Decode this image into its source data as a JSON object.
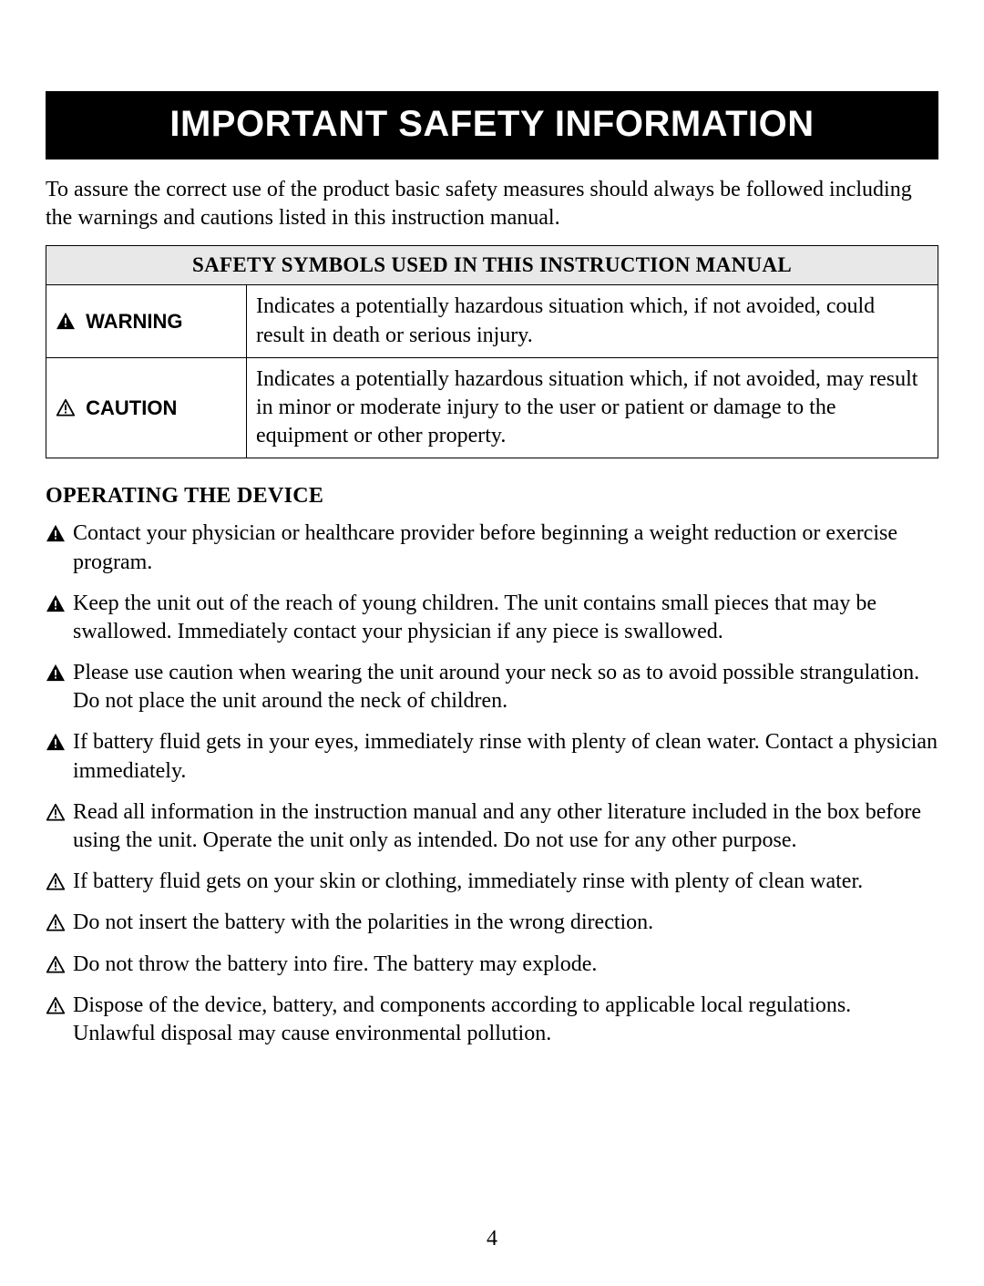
{
  "header": "IMPORTANT SAFETY INFORMATION",
  "intro": "To assure the correct use of the product basic safety measures should always be followed including the warnings and cautions listed in this instruction manual.",
  "table": {
    "title": "SAFETY SYMBOLS USED IN THIS INSTRUCTION MANUAL",
    "rows": [
      {
        "label": "WARNING",
        "filled": true,
        "desc": "Indicates a potentially hazardous situation which, if not avoided, could result in death or serious injury."
      },
      {
        "label": "CAUTION",
        "filled": false,
        "desc": "Indicates a potentially hazardous situation which, if not avoided, may result in minor or moderate injury to the user or patient or damage to the equipment or other property."
      }
    ]
  },
  "section_heading": "OPERATING THE DEVICE",
  "items": [
    {
      "filled": true,
      "text": "Contact your physician or healthcare provider before beginning a weight reduction or exercise program."
    },
    {
      "filled": true,
      "text": "Keep the unit out of the reach of young children. The unit contains small pieces that may be swallowed. Immediately contact your physician if any piece is swallowed."
    },
    {
      "filled": true,
      "text": "Please use caution when wearing the unit around your neck so as to avoid possible strangulation. Do not place the unit around the neck of children."
    },
    {
      "filled": true,
      "text": "If battery fluid gets in your eyes, immediately rinse with plenty of clean water. Contact a physician immediately."
    },
    {
      "filled": false,
      "text": "Read all information in the instruction manual and any other literature included in the box before using the unit. Operate the unit only as intended. Do not use for any other purpose."
    },
    {
      "filled": false,
      "text": "If battery fluid gets on your skin or clothing, immediately rinse with plenty of clean water."
    },
    {
      "filled": false,
      "text": "Do not insert the battery with the polarities in the wrong direction."
    },
    {
      "filled": false,
      "text": "Do not throw the battery into fire. The battery may explode."
    },
    {
      "filled": false,
      "text": "Dispose of the device, battery, and components according to applicable local regulations. Unlawful disposal may cause environmental pollution."
    }
  ],
  "page_number": "4",
  "colors": {
    "header_bg": "#000000",
    "header_fg": "#ffffff",
    "page_bg": "#ffffff",
    "table_header_bg": "#e8e8e8",
    "border": "#000000",
    "text": "#000000"
  }
}
